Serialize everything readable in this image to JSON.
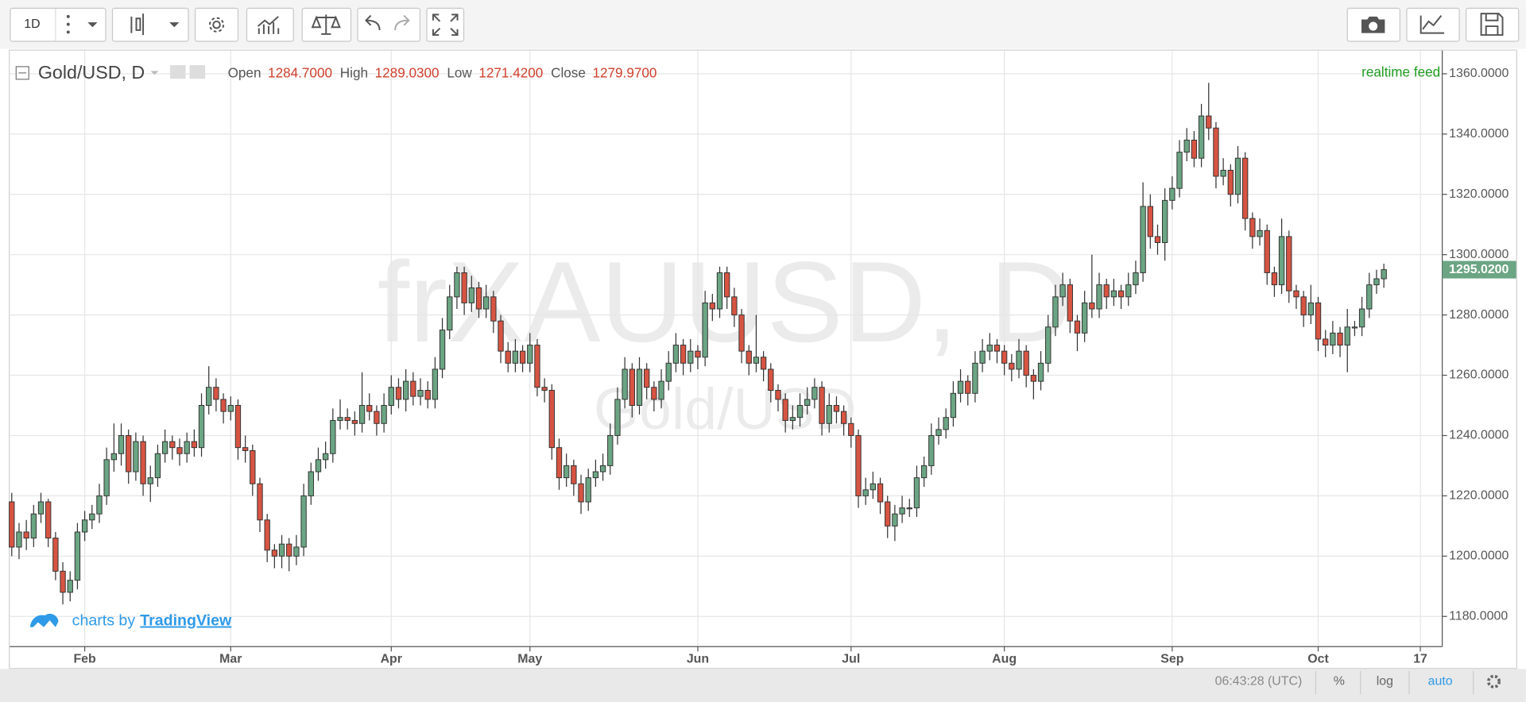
{
  "toolbar": {
    "interval": "1D"
  },
  "chart_data": {
    "type": "candlestick",
    "title": "Gold/USD, D",
    "watermark": "frXAUUSD, D",
    "watermark_sub": "Gold/USD",
    "status": "realtime feed",
    "legend": [
      {
        "label": "Open",
        "value": "1284.7000"
      },
      {
        "label": "High",
        "value": "1289.0300"
      },
      {
        "label": "Low",
        "value": "1271.4200"
      },
      {
        "label": "Close",
        "value": "1279.9700"
      }
    ],
    "up_color": "#6ba583",
    "down_color": "#d75442",
    "grid": true,
    "ylim": [
      1170,
      1367.7
    ],
    "yticks": [
      {
        "value": 1180,
        "label": "1180.0000"
      },
      {
        "value": 1200,
        "label": "1200.0000"
      },
      {
        "value": 1220,
        "label": "1220.0000"
      },
      {
        "value": 1240,
        "label": "1240.0000"
      },
      {
        "value": 1260,
        "label": "1260.0000"
      },
      {
        "value": 1280,
        "label": "1280.0000"
      },
      {
        "value": 1300,
        "label": "1300.0000"
      },
      {
        "value": 1320,
        "label": "1320.0000"
      },
      {
        "value": 1340,
        "label": "1340.0000"
      },
      {
        "value": 1360,
        "label": "1360.0000"
      }
    ],
    "last_price": {
      "value": 1295.02,
      "label": "1295.0200"
    },
    "categories": [
      null,
      null,
      null,
      null,
      null,
      null,
      null,
      null,
      null,
      null,
      "Feb",
      null,
      null,
      null,
      null,
      null,
      null,
      null,
      null,
      null,
      null,
      null,
      null,
      null,
      null,
      null,
      null,
      null,
      null,
      null,
      "Mar",
      null,
      null,
      null,
      null,
      null,
      null,
      null,
      null,
      null,
      null,
      null,
      null,
      null,
      null,
      null,
      null,
      null,
      null,
      null,
      null,
      null,
      "Apr",
      null,
      null,
      null,
      null,
      null,
      null,
      null,
      null,
      null,
      null,
      null,
      null,
      null,
      null,
      null,
      null,
      null,
      null,
      "May",
      null,
      null,
      null,
      null,
      null,
      null,
      null,
      null,
      null,
      null,
      null,
      null,
      null,
      null,
      null,
      null,
      null,
      null,
      null,
      null,
      null,
      null,
      "Jun",
      null,
      null,
      null,
      null,
      null,
      null,
      null,
      null,
      null,
      null,
      null,
      null,
      null,
      null,
      null,
      null,
      null,
      null,
      null,
      null,
      "Jul",
      null,
      null,
      null,
      null,
      null,
      null,
      null,
      null,
      null,
      null,
      null,
      null,
      null,
      null,
      null,
      null,
      null,
      null,
      null,
      null,
      "Aug",
      null,
      null,
      null,
      null,
      null,
      null,
      null,
      null,
      null,
      null,
      null,
      null,
      null,
      null,
      null,
      null,
      null,
      null,
      null,
      null,
      null,
      null,
      "Sep",
      null,
      null,
      null,
      null,
      null,
      null,
      null,
      null,
      null,
      null,
      null,
      null,
      null,
      null,
      null,
      null,
      null,
      null,
      null,
      "Oct",
      null,
      null,
      null,
      null,
      null,
      null,
      null,
      null,
      null,
      null,
      null,
      null,
      null,
      "17"
    ],
    "ohlc": [
      [
        1218,
        1221,
        1200,
        1203
      ],
      [
        1203,
        1211,
        1199,
        1208
      ],
      [
        1208,
        1212,
        1202,
        1206
      ],
      [
        1206,
        1217,
        1203,
        1214
      ],
      [
        1214,
        1221,
        1211,
        1218
      ],
      [
        1218,
        1219,
        1203,
        1206
      ],
      [
        1206,
        1208,
        1192,
        1195
      ],
      [
        1195,
        1198,
        1184,
        1188
      ],
      [
        1188,
        1195,
        1185,
        1192
      ],
      [
        1192,
        1211,
        1189,
        1208
      ],
      [
        1208,
        1215,
        1205,
        1212
      ],
      [
        1212,
        1217,
        1209,
        1214
      ],
      [
        1214,
        1224,
        1211,
        1220
      ],
      [
        1220,
        1236,
        1217,
        1232
      ],
      [
        1232,
        1244,
        1228,
        1234
      ],
      [
        1234,
        1244,
        1230,
        1240
      ],
      [
        1240,
        1242,
        1224,
        1228
      ],
      [
        1228,
        1241,
        1225,
        1238
      ],
      [
        1238,
        1240,
        1220,
        1224
      ],
      [
        1224,
        1230,
        1218,
        1226
      ],
      [
        1226,
        1237,
        1223,
        1234
      ],
      [
        1234,
        1242,
        1231,
        1238
      ],
      [
        1238,
        1240,
        1232,
        1236
      ],
      [
        1236,
        1239,
        1230,
        1234
      ],
      [
        1234,
        1241,
        1231,
        1238
      ],
      [
        1238,
        1242,
        1233,
        1236
      ],
      [
        1236,
        1254,
        1233,
        1250
      ],
      [
        1250,
        1263,
        1247,
        1256
      ],
      [
        1256,
        1259,
        1248,
        1252
      ],
      [
        1252,
        1254,
        1244,
        1248
      ],
      [
        1248,
        1253,
        1245,
        1250
      ],
      [
        1250,
        1252,
        1232,
        1236
      ],
      [
        1236,
        1240,
        1231,
        1235
      ],
      [
        1235,
        1237,
        1220,
        1224
      ],
      [
        1224,
        1226,
        1208,
        1212
      ],
      [
        1212,
        1214,
        1198,
        1202
      ],
      [
        1202,
        1204,
        1196,
        1200
      ],
      [
        1200,
        1207,
        1196,
        1204
      ],
      [
        1204,
        1206,
        1195,
        1200
      ],
      [
        1200,
        1207,
        1197,
        1203
      ],
      [
        1203,
        1224,
        1200,
        1220
      ],
      [
        1220,
        1231,
        1217,
        1228
      ],
      [
        1228,
        1236,
        1225,
        1232
      ],
      [
        1232,
        1238,
        1229,
        1234
      ],
      [
        1234,
        1249,
        1231,
        1245
      ],
      [
        1245,
        1252,
        1242,
        1246
      ],
      [
        1246,
        1249,
        1242,
        1245
      ],
      [
        1245,
        1248,
        1240,
        1244
      ],
      [
        1244,
        1261,
        1241,
        1250
      ],
      [
        1250,
        1254,
        1245,
        1248
      ],
      [
        1248,
        1250,
        1240,
        1244
      ],
      [
        1244,
        1254,
        1241,
        1250
      ],
      [
        1250,
        1260,
        1247,
        1256
      ],
      [
        1256,
        1259,
        1249,
        1252
      ],
      [
        1252,
        1262,
        1248,
        1258
      ],
      [
        1258,
        1261,
        1250,
        1253
      ],
      [
        1253,
        1259,
        1250,
        1255
      ],
      [
        1255,
        1258,
        1249,
        1252
      ],
      [
        1252,
        1266,
        1249,
        1262
      ],
      [
        1262,
        1279,
        1259,
        1275
      ],
      [
        1275,
        1290,
        1272,
        1286
      ],
      [
        1286,
        1296,
        1282,
        1294
      ],
      [
        1294,
        1296,
        1280,
        1284
      ],
      [
        1284,
        1293,
        1281,
        1289
      ],
      [
        1289,
        1291,
        1279,
        1282
      ],
      [
        1282,
        1290,
        1279,
        1286
      ],
      [
        1286,
        1288,
        1274,
        1278
      ],
      [
        1278,
        1280,
        1264,
        1268
      ],
      [
        1268,
        1271,
        1261,
        1264
      ],
      [
        1264,
        1272,
        1261,
        1268
      ],
      [
        1268,
        1270,
        1261,
        1264
      ],
      [
        1264,
        1274,
        1261,
        1270
      ],
      [
        1270,
        1272,
        1253,
        1256
      ],
      [
        1256,
        1259,
        1251,
        1255
      ],
      [
        1255,
        1257,
        1232,
        1236
      ],
      [
        1236,
        1239,
        1222,
        1226
      ],
      [
        1226,
        1234,
        1223,
        1230
      ],
      [
        1230,
        1232,
        1220,
        1224
      ],
      [
        1224,
        1227,
        1214,
        1218
      ],
      [
        1218,
        1229,
        1215,
        1226
      ],
      [
        1226,
        1232,
        1223,
        1228
      ],
      [
        1228,
        1234,
        1225,
        1230
      ],
      [
        1230,
        1244,
        1227,
        1240
      ],
      [
        1240,
        1256,
        1237,
        1252
      ],
      [
        1252,
        1266,
        1249,
        1262
      ],
      [
        1262,
        1264,
        1246,
        1250
      ],
      [
        1250,
        1266,
        1247,
        1262
      ],
      [
        1262,
        1264,
        1252,
        1256
      ],
      [
        1256,
        1258,
        1248,
        1252
      ],
      [
        1252,
        1262,
        1249,
        1258
      ],
      [
        1258,
        1268,
        1255,
        1264
      ],
      [
        1264,
        1274,
        1261,
        1270
      ],
      [
        1270,
        1272,
        1260,
        1264
      ],
      [
        1264,
        1272,
        1261,
        1268
      ],
      [
        1268,
        1270,
        1262,
        1266
      ],
      [
        1266,
        1288,
        1263,
        1284
      ],
      [
        1284,
        1287,
        1278,
        1282
      ],
      [
        1282,
        1296,
        1279,
        1294
      ],
      [
        1294,
        1296,
        1282,
        1286
      ],
      [
        1286,
        1289,
        1276,
        1280
      ],
      [
        1280,
        1282,
        1264,
        1268
      ],
      [
        1268,
        1270,
        1260,
        1264
      ],
      [
        1264,
        1280,
        1261,
        1266
      ],
      [
        1266,
        1268,
        1258,
        1262
      ],
      [
        1262,
        1264,
        1251,
        1255
      ],
      [
        1255,
        1257,
        1248,
        1252
      ],
      [
        1252,
        1254,
        1241,
        1245
      ],
      [
        1245,
        1250,
        1242,
        1246
      ],
      [
        1246,
        1254,
        1243,
        1250
      ],
      [
        1250,
        1256,
        1247,
        1252
      ],
      [
        1252,
        1259,
        1249,
        1256
      ],
      [
        1256,
        1258,
        1240,
        1244
      ],
      [
        1244,
        1254,
        1241,
        1250
      ],
      [
        1250,
        1253,
        1244,
        1248
      ],
      [
        1248,
        1250,
        1240,
        1244
      ],
      [
        1244,
        1246,
        1236,
        1240
      ],
      [
        1240,
        1242,
        1216,
        1220
      ],
      [
        1220,
        1226,
        1217,
        1222
      ],
      [
        1222,
        1228,
        1219,
        1224
      ],
      [
        1224,
        1226,
        1214,
        1218
      ],
      [
        1218,
        1220,
        1206,
        1210
      ],
      [
        1210,
        1217,
        1205,
        1214
      ],
      [
        1214,
        1220,
        1211,
        1216
      ],
      [
        1216,
        1219,
        1213,
        1216
      ],
      [
        1216,
        1230,
        1213,
        1226
      ],
      [
        1226,
        1233,
        1223,
        1230
      ],
      [
        1230,
        1244,
        1227,
        1240
      ],
      [
        1240,
        1246,
        1237,
        1242
      ],
      [
        1242,
        1249,
        1239,
        1246
      ],
      [
        1246,
        1258,
        1243,
        1254
      ],
      [
        1254,
        1262,
        1251,
        1258
      ],
      [
        1258,
        1260,
        1250,
        1254
      ],
      [
        1254,
        1268,
        1251,
        1264
      ],
      [
        1264,
        1272,
        1261,
        1268
      ],
      [
        1268,
        1274,
        1265,
        1270
      ],
      [
        1270,
        1272,
        1264,
        1268
      ],
      [
        1268,
        1270,
        1260,
        1264
      ],
      [
        1264,
        1267,
        1258,
        1262
      ],
      [
        1262,
        1272,
        1259,
        1268
      ],
      [
        1268,
        1270,
        1256,
        1260
      ],
      [
        1260,
        1262,
        1252,
        1258
      ],
      [
        1258,
        1268,
        1255,
        1264
      ],
      [
        1264,
        1280,
        1261,
        1276
      ],
      [
        1276,
        1290,
        1273,
        1286
      ],
      [
        1286,
        1294,
        1283,
        1290
      ],
      [
        1290,
        1292,
        1274,
        1278
      ],
      [
        1278,
        1280,
        1268,
        1274
      ],
      [
        1274,
        1288,
        1271,
        1284
      ],
      [
        1284,
        1300,
        1279,
        1282
      ],
      [
        1282,
        1294,
        1279,
        1290
      ],
      [
        1290,
        1292,
        1282,
        1286
      ],
      [
        1286,
        1292,
        1283,
        1288
      ],
      [
        1288,
        1290,
        1282,
        1286
      ],
      [
        1286,
        1294,
        1283,
        1290
      ],
      [
        1290,
        1298,
        1287,
        1294
      ],
      [
        1294,
        1324,
        1291,
        1316
      ],
      [
        1316,
        1320,
        1302,
        1306
      ],
      [
        1306,
        1310,
        1300,
        1304
      ],
      [
        1304,
        1322,
        1298,
        1318
      ],
      [
        1318,
        1326,
        1315,
        1322
      ],
      [
        1322,
        1338,
        1319,
        1334
      ],
      [
        1334,
        1342,
        1331,
        1338
      ],
      [
        1338,
        1341,
        1329,
        1332
      ],
      [
        1332,
        1350,
        1329,
        1346
      ],
      [
        1346,
        1357,
        1338,
        1342
      ],
      [
        1342,
        1344,
        1322,
        1326
      ],
      [
        1326,
        1332,
        1323,
        1328
      ],
      [
        1328,
        1330,
        1316,
        1320
      ],
      [
        1320,
        1336,
        1317,
        1332
      ],
      [
        1332,
        1334,
        1308,
        1312
      ],
      [
        1312,
        1314,
        1302,
        1306
      ],
      [
        1306,
        1312,
        1303,
        1308
      ],
      [
        1308,
        1310,
        1290,
        1294
      ],
      [
        1294,
        1296,
        1286,
        1290
      ],
      [
        1290,
        1312,
        1287,
        1306
      ],
      [
        1306,
        1308,
        1284,
        1288
      ],
      [
        1288,
        1290,
        1282,
        1286
      ],
      [
        1286,
        1288,
        1276,
        1280
      ],
      [
        1280,
        1290,
        1277,
        1284
      ],
      [
        1284,
        1286,
        1268,
        1272
      ],
      [
        1272,
        1275,
        1266,
        1270
      ],
      [
        1270,
        1278,
        1267,
        1274
      ],
      [
        1274,
        1276,
        1266,
        1270
      ],
      [
        1270,
        1282,
        1261,
        1276
      ],
      [
        1276,
        1278,
        1273,
        1276
      ],
      [
        1276,
        1286,
        1273,
        1282
      ],
      [
        1282,
        1294,
        1279,
        1290
      ],
      [
        1290,
        1295,
        1287,
        1292
      ],
      [
        1292,
        1297,
        1289,
        1295.02
      ],
      null,
      null,
      null,
      null,
      null
    ]
  },
  "footer": {
    "time": "06:43:28 (UTC)",
    "percent": "%",
    "log": "log",
    "auto": "auto"
  },
  "branding": {
    "text": "charts by",
    "link": "TradingView"
  }
}
